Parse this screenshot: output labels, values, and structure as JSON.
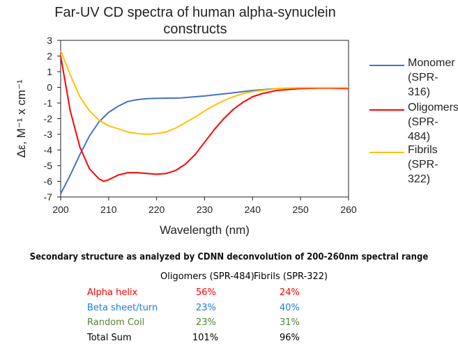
{
  "chart_data": {
    "type": "line",
    "title": "Far-UV CD spectra of human alpha-synuclein constructs",
    "xlabel": "Wavelength (nm)",
    "ylabel": "Δε, M⁻¹ x cm⁻¹",
    "xlim": [
      200,
      260
    ],
    "ylim": [
      -7,
      3
    ],
    "xticks": [
      200,
      210,
      220,
      230,
      240,
      250,
      260
    ],
    "yticks": [
      3,
      2,
      1,
      0,
      -1,
      -2,
      -3,
      -4,
      -5,
      -6,
      -7
    ],
    "grid": false,
    "legend": "right",
    "series": [
      {
        "name": "Monomer (SPR-316)",
        "name_lines": [
          "Monomer",
          "(SPR-316)"
        ],
        "color": "#4472C4",
        "x": [
          200,
          202,
          204,
          206,
          208,
          210,
          212,
          214,
          216,
          218,
          220,
          225,
          230,
          235,
          240,
          245,
          250,
          255,
          260
        ],
        "y": [
          -6.8,
          -5.6,
          -4.3,
          -3.1,
          -2.2,
          -1.6,
          -1.2,
          -0.9,
          -0.78,
          -0.72,
          -0.7,
          -0.68,
          -0.55,
          -0.38,
          -0.2,
          -0.08,
          -0.03,
          -0.02,
          -0.02
        ]
      },
      {
        "name": "Oligomers (SPR-484)",
        "name_lines": [
          "Oligomers",
          "(SPR-484)"
        ],
        "color": "#FF0000",
        "x": [
          200,
          202,
          204,
          206,
          208,
          209,
          210,
          212,
          214,
          216,
          218,
          220,
          222,
          224,
          226,
          228,
          230,
          232,
          234,
          236,
          238,
          240,
          242,
          245,
          250,
          255,
          260
        ],
        "y": [
          2.0,
          -1.5,
          -3.8,
          -5.2,
          -5.85,
          -6.0,
          -5.9,
          -5.6,
          -5.45,
          -5.45,
          -5.5,
          -5.55,
          -5.5,
          -5.3,
          -4.9,
          -4.3,
          -3.5,
          -2.7,
          -2.0,
          -1.4,
          -0.95,
          -0.6,
          -0.4,
          -0.2,
          -0.08,
          -0.05,
          -0.08
        ]
      },
      {
        "name": "Fibrils (SPR-322)",
        "name_lines": [
          "Fibrils",
          "(SPR-322)"
        ],
        "color": "#FFC000",
        "x": [
          200,
          202,
          204,
          206,
          208,
          210,
          212,
          214,
          216,
          218,
          220,
          222,
          224,
          226,
          228,
          230,
          232,
          234,
          236,
          238,
          240,
          245,
          250,
          260
        ],
        "y": [
          2.35,
          0.8,
          -0.6,
          -1.5,
          -2.1,
          -2.45,
          -2.65,
          -2.85,
          -2.95,
          -3.0,
          -2.95,
          -2.85,
          -2.6,
          -2.25,
          -1.9,
          -1.5,
          -1.15,
          -0.85,
          -0.6,
          -0.4,
          -0.27,
          -0.08,
          -0.02,
          -0.02
        ]
      }
    ]
  },
  "table": {
    "title": "Secondary structure as analyzed by CDNN deconvolution of 200-260nm spectral range",
    "headers": [
      "Oligomers (SPR-484)",
      "Fibrils (SPR-322)"
    ],
    "rows": [
      {
        "label": "Alpha helix",
        "values": [
          "56%",
          "24%"
        ],
        "color": "#FF0000"
      },
      {
        "label": "Beta sheet/turn",
        "values": [
          "23%",
          "40%"
        ],
        "color": "#1F7BD8"
      },
      {
        "label": "Random Coil",
        "values": [
          "23%",
          "31%"
        ],
        "color": "#548235"
      },
      {
        "label": "Total Sum",
        "values": [
          "101%",
          "96%"
        ],
        "color": "#000000"
      }
    ]
  }
}
